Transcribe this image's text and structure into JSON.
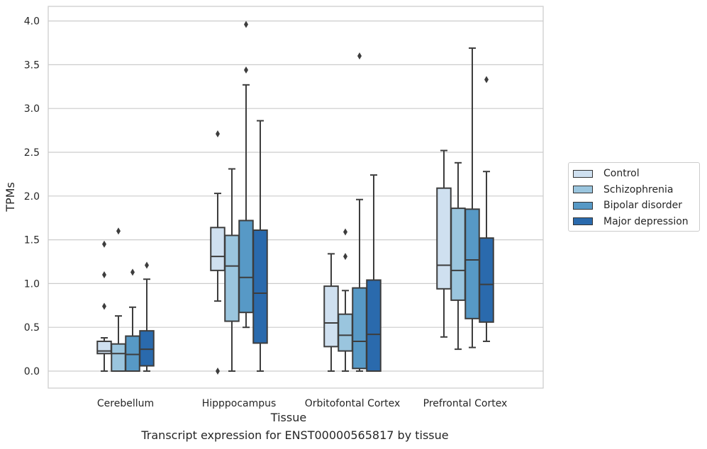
{
  "chart_data": {
    "type": "box",
    "title": "",
    "xlabel": "Tissue",
    "ylabel": "TPMs",
    "ylim": [
      -0.2,
      4.17
    ],
    "yticks": [
      "0.0",
      "0.5",
      "1.0",
      "1.5",
      "2.0",
      "2.5",
      "3.0",
      "3.5",
      "4.0"
    ],
    "grid": "horizontal",
    "legend_position": "right",
    "categories": [
      "Cerebellum",
      "Hipppocampus",
      "Orbitofontal Cortex",
      "Prefrontal Cortex"
    ],
    "series": [
      {
        "name": "Control",
        "color": "#cfe0f0",
        "boxes": [
          {
            "whisker_low": 0.0,
            "q1": 0.2,
            "median": 0.23,
            "q3": 0.34,
            "whisker_high": 0.38,
            "outliers": [
              0.74,
              1.1,
              1.45
            ]
          },
          {
            "whisker_low": 0.8,
            "q1": 1.15,
            "median": 1.31,
            "q3": 1.64,
            "whisker_high": 2.03,
            "outliers": [
              0.0,
              2.71
            ]
          },
          {
            "whisker_low": 0.0,
            "q1": 0.28,
            "median": 0.55,
            "q3": 0.97,
            "whisker_high": 1.34,
            "outliers": []
          },
          {
            "whisker_low": 0.39,
            "q1": 0.94,
            "median": 1.21,
            "q3": 2.09,
            "whisker_high": 2.52,
            "outliers": []
          }
        ]
      },
      {
        "name": "Schizophrenia",
        "color": "#9ac5de",
        "boxes": [
          {
            "whisker_low": 0.0,
            "q1": 0.0,
            "median": 0.2,
            "q3": 0.31,
            "whisker_high": 0.63,
            "outliers": [
              1.6
            ]
          },
          {
            "whisker_low": 0.0,
            "q1": 0.57,
            "median": 1.2,
            "q3": 1.55,
            "whisker_high": 2.31,
            "outliers": []
          },
          {
            "whisker_low": 0.0,
            "q1": 0.23,
            "median": 0.41,
            "q3": 0.65,
            "whisker_high": 0.92,
            "outliers": [
              1.31,
              1.59
            ]
          },
          {
            "whisker_low": 0.25,
            "q1": 0.81,
            "median": 1.15,
            "q3": 1.86,
            "whisker_high": 2.38,
            "outliers": []
          }
        ]
      },
      {
        "name": "Bipolar disorder",
        "color": "#5799c6",
        "boxes": [
          {
            "whisker_low": 0.0,
            "q1": 0.0,
            "median": 0.19,
            "q3": 0.4,
            "whisker_high": 0.73,
            "outliers": [
              1.13
            ]
          },
          {
            "whisker_low": 0.5,
            "q1": 0.67,
            "median": 1.07,
            "q3": 1.72,
            "whisker_high": 3.27,
            "outliers": [
              3.44,
              3.96
            ]
          },
          {
            "whisker_low": 0.0,
            "q1": 0.03,
            "median": 0.34,
            "q3": 0.95,
            "whisker_high": 1.96,
            "outliers": [
              3.6
            ]
          },
          {
            "whisker_low": 0.27,
            "q1": 0.6,
            "median": 1.27,
            "q3": 1.85,
            "whisker_high": 3.69,
            "outliers": []
          }
        ]
      },
      {
        "name": "Major depression",
        "color": "#2a6aad",
        "boxes": [
          {
            "whisker_low": 0.0,
            "q1": 0.06,
            "median": 0.25,
            "q3": 0.46,
            "whisker_high": 1.05,
            "outliers": [
              1.21
            ]
          },
          {
            "whisker_low": 0.0,
            "q1": 0.32,
            "median": 0.89,
            "q3": 1.61,
            "whisker_high": 2.86,
            "outliers": []
          },
          {
            "whisker_low": 0.0,
            "q1": 0.0,
            "median": 0.42,
            "q3": 1.04,
            "whisker_high": 2.24,
            "outliers": []
          },
          {
            "whisker_low": 0.34,
            "q1": 0.56,
            "median": 0.99,
            "q3": 1.52,
            "whisker_high": 2.28,
            "outliers": [
              3.33
            ]
          }
        ]
      }
    ]
  },
  "caption": "Transcript expression for ENST00000565817 by tissue"
}
